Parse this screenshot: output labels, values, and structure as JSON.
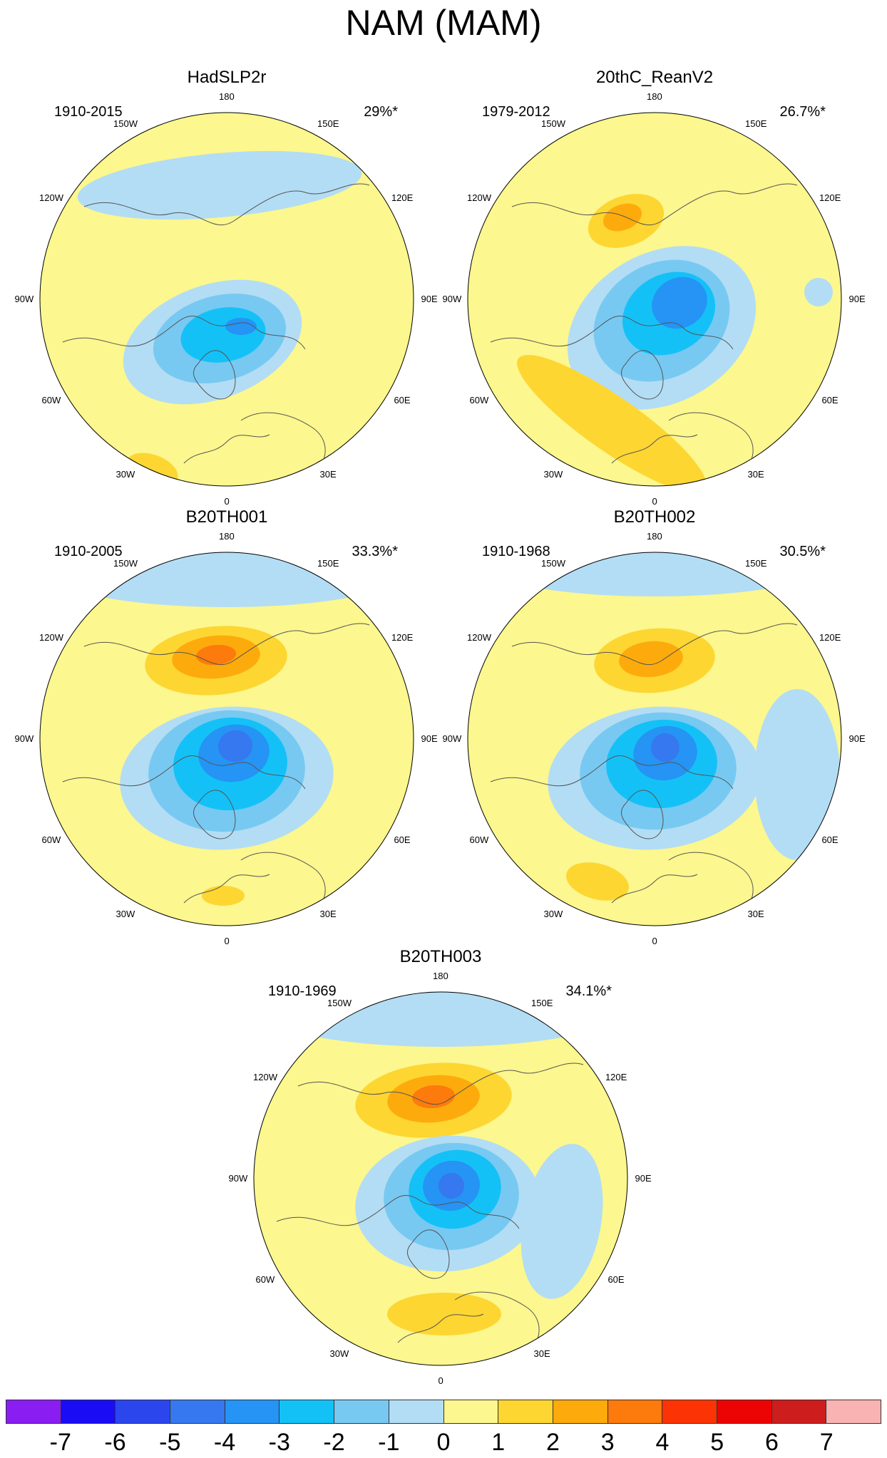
{
  "title": "NAM (MAM)",
  "panels": [
    {
      "title": "HadSLP2r",
      "period": "1910-2015",
      "pct": "29%*"
    },
    {
      "title": "20thC_ReanV2",
      "period": "1979-2012",
      "pct": "26.7%*"
    },
    {
      "title": "B20TH001",
      "period": "1910-2005",
      "pct": "33.3%*"
    },
    {
      "title": "B20TH002",
      "period": "1910-1968",
      "pct": "30.5%*"
    },
    {
      "title": "B20TH003",
      "period": "1910-1969",
      "pct": "34.1%*"
    }
  ],
  "lon_labels": [
    "180",
    "150E",
    "120E",
    "90E",
    "60E",
    "30E",
    "0",
    "30W",
    "60W",
    "90W",
    "120W",
    "150W"
  ],
  "colorbar": {
    "ticks": [
      "-7",
      "-6",
      "-5",
      "-4",
      "-3",
      "-2",
      "-1",
      "0",
      "1",
      "2",
      "3",
      "4",
      "5",
      "6",
      "7"
    ],
    "colors": [
      "#8a1df2",
      "#1a0cf5",
      "#2c46ee",
      "#3578ef",
      "#2594f4",
      "#14c1f7",
      "#77c9f2",
      "#b3ddf4",
      "#fcf78e",
      "#fdd632",
      "#fdab0c",
      "#fd7a0c",
      "#fc3405",
      "#ec0404",
      "#cd1d1d",
      "#fab3b3"
    ]
  }
}
